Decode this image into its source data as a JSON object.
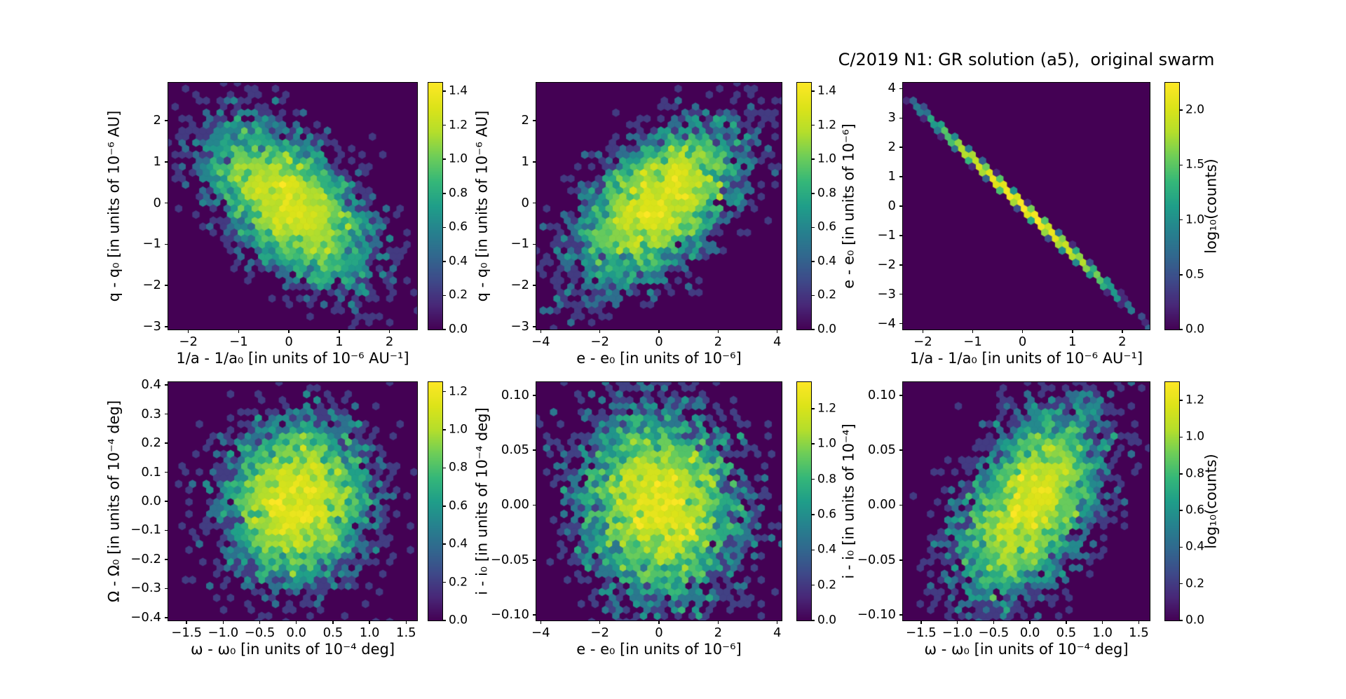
{
  "chart_data": {
    "type": "hexbin",
    "title": "C/2019 N1: GR solution (a5),  original swarm",
    "colormap": "viridis",
    "background_color": "#440154",
    "grid": false,
    "panels": [
      {
        "id": "top-left",
        "xlabel": "1/a - 1/a₀ [in units of 10⁻⁶ AU⁻¹]",
        "ylabel": "q - q₀ [in units of 10⁻⁶ AU]",
        "xlim": [
          -2.4,
          2.55
        ],
        "ylim": [
          -3.07,
          2.92
        ],
        "xtick_vals": [
          -2,
          -1,
          0,
          1,
          2
        ],
        "xtick_labels": [
          "−2",
          "−1",
          "0",
          "1",
          "2"
        ],
        "ytick_vals": [
          2,
          1,
          0,
          -1,
          -2,
          -3
        ],
        "ytick_labels": [
          "2",
          "1",
          "0",
          "−1",
          "−2",
          "−3"
        ],
        "colorbar": {
          "tick_vals": [
            1.4,
            1.2,
            1.0,
            0.8,
            0.6,
            0.4,
            0.2,
            0.0
          ],
          "tick_labels": [
            "1.4",
            "1.2",
            "1.0",
            "0.8",
            "0.6",
            "0.4",
            "0.2",
            "0.0"
          ],
          "vmax": 1.45,
          "label": ""
        },
        "dist": {
          "kind": "gaussian",
          "n": 4500,
          "cx": 0,
          "cy": 0,
          "sx": 0.78,
          "sy": 0.95,
          "rho": -0.55
        },
        "seed": 11
      },
      {
        "id": "top-middle",
        "xlabel": "e - e₀ [in units of 10⁻⁶]",
        "ylabel": "q - q₀ [in units of 10⁻⁶ AU]",
        "xlim": [
          -4.15,
          4.15
        ],
        "ylim": [
          -3.07,
          2.92
        ],
        "xtick_vals": [
          -4,
          -2,
          0,
          2,
          4
        ],
        "xtick_labels": [
          "−4",
          "−2",
          "0",
          "2",
          "4"
        ],
        "ytick_vals": [
          2,
          1,
          0,
          -1,
          -2,
          -3
        ],
        "ytick_labels": [
          "2",
          "1",
          "0",
          "−1",
          "−2",
          "−3"
        ],
        "colorbar": {
          "tick_vals": [
            1.4,
            1.2,
            1.0,
            0.8,
            0.6,
            0.4,
            0.2,
            0.0
          ],
          "tick_labels": [
            "1.4",
            "1.2",
            "1.0",
            "0.8",
            "0.6",
            "0.4",
            "0.2",
            "0.0"
          ],
          "vmax": 1.45,
          "label": ""
        },
        "dist": {
          "kind": "gaussian",
          "n": 4500,
          "cx": 0,
          "cy": 0,
          "sx": 1.35,
          "sy": 0.95,
          "rho": 0.55
        },
        "seed": 22
      },
      {
        "id": "top-right",
        "xlabel": "1/a - 1/a₀ [in units of 10⁻⁶ AU⁻¹]",
        "ylabel": "e - e₀ [in units of 10⁻⁶]",
        "xlim": [
          -2.4,
          2.55
        ],
        "ylim": [
          -4.2,
          4.2
        ],
        "xtick_vals": [
          -2,
          -1,
          0,
          1,
          2
        ],
        "xtick_labels": [
          "−2",
          "−1",
          "0",
          "1",
          "2"
        ],
        "ytick_vals": [
          4,
          3,
          2,
          1,
          0,
          -1,
          -2,
          -3,
          -4
        ],
        "ytick_labels": [
          "4",
          "3",
          "2",
          "1",
          "0",
          "−1",
          "−2",
          "−3",
          "−4"
        ],
        "colorbar": {
          "tick_vals": [
            2.0,
            1.5,
            1.0,
            0.5,
            0.0
          ],
          "tick_labels": [
            "2.0",
            "1.5",
            "1.0",
            "0.5",
            "0.0"
          ],
          "vmax": 2.25,
          "label": "log₁₀(counts)"
        },
        "dist": {
          "kind": "line",
          "n": 4500,
          "sx": 0.75,
          "slope": -1.6,
          "noise": 0.05
        },
        "seed": 33
      },
      {
        "id": "bottom-left",
        "xlabel": "ω - ω₀ [in units of 10⁻⁴ deg]",
        "ylabel": "Ω - Ω₀ [in units of 10⁻⁴ deg]",
        "xlim": [
          -1.75,
          1.65
        ],
        "ylim": [
          -0.41,
          0.41
        ],
        "xtick_vals": [
          -1.5,
          -1.0,
          -0.5,
          0.0,
          0.5,
          1.0,
          1.5
        ],
        "xtick_labels": [
          "−1.5",
          "−1.0",
          "−0.5",
          "0.0",
          "0.5",
          "1.0",
          "1.5"
        ],
        "ytick_vals": [
          0.4,
          0.3,
          0.2,
          0.1,
          0.0,
          -0.1,
          -0.2,
          -0.3,
          -0.4
        ],
        "ytick_labels": [
          "0.4",
          "0.3",
          "0.2",
          "0.1",
          "0.0",
          "−0.1",
          "−0.2",
          "−0.3",
          "−0.4"
        ],
        "colorbar": {
          "tick_vals": [
            1.2,
            1.0,
            0.8,
            0.6,
            0.4,
            0.2,
            0.0
          ],
          "tick_labels": [
            "1.2",
            "1.0",
            "0.8",
            "0.6",
            "0.4",
            "0.2",
            "0.0"
          ],
          "vmax": 1.25,
          "label": ""
        },
        "dist": {
          "kind": "gaussian",
          "n": 4500,
          "cx": 0,
          "cy": 0,
          "sx": 0.48,
          "sy": 0.135,
          "rho": 0.05
        },
        "seed": 44
      },
      {
        "id": "bottom-middle",
        "xlabel": "e - e₀ [in units of 10⁻⁶]",
        "ylabel": "i - i₀ [in units of 10⁻⁴ deg]",
        "xlim": [
          -4.15,
          4.15
        ],
        "ylim": [
          -0.105,
          0.112
        ],
        "xtick_vals": [
          -4,
          -2,
          0,
          2,
          4
        ],
        "xtick_labels": [
          "−4",
          "−2",
          "0",
          "2",
          "4"
        ],
        "ytick_vals": [
          0.1,
          0.05,
          0.0,
          -0.05,
          -0.1
        ],
        "ytick_labels": [
          "0.10",
          "0.05",
          "0.00",
          "−0.05",
          "−0.10"
        ],
        "colorbar": {
          "tick_vals": [
            1.2,
            1.0,
            0.8,
            0.6,
            0.4,
            0.2,
            0.0
          ],
          "tick_labels": [
            "1.2",
            "1.0",
            "0.8",
            "0.6",
            "0.4",
            "0.2",
            "0.0"
          ],
          "vmax": 1.35,
          "label": ""
        },
        "dist": {
          "kind": "gaussian",
          "n": 4500,
          "cx": 0,
          "cy": 0,
          "sx": 1.35,
          "sy": 0.042,
          "rho": -0.1
        },
        "seed": 55
      },
      {
        "id": "bottom-right",
        "xlabel": "ω - ω₀ [in units of 10⁻⁴ deg]",
        "ylabel": "i - i₀ [in units of 10⁻⁴]",
        "xlim": [
          -1.75,
          1.65
        ],
        "ylim": [
          -0.105,
          0.112
        ],
        "xtick_vals": [
          -1.5,
          -1.0,
          -0.5,
          0.0,
          0.5,
          1.0,
          1.5
        ],
        "xtick_labels": [
          "−1.5",
          "−1.0",
          "−0.5",
          "0.0",
          "0.5",
          "1.0",
          "1.5"
        ],
        "ytick_vals": [
          0.1,
          0.05,
          0.0,
          -0.05,
          -0.1
        ],
        "ytick_labels": [
          "0.10",
          "0.05",
          "0.00",
          "−0.05",
          "−0.10"
        ],
        "colorbar": {
          "tick_vals": [
            1.2,
            1.0,
            0.8,
            0.6,
            0.4,
            0.2,
            0.0
          ],
          "tick_labels": [
            "1.2",
            "1.0",
            "0.8",
            "0.6",
            "0.4",
            "0.2",
            "0.0"
          ],
          "vmax": 1.3,
          "label": "log₁₀(counts)"
        },
        "dist": {
          "kind": "gaussian",
          "n": 4500,
          "cx": 0,
          "cy": 0,
          "sx": 0.48,
          "sy": 0.042,
          "rho": 0.5
        },
        "seed": 66
      }
    ]
  }
}
